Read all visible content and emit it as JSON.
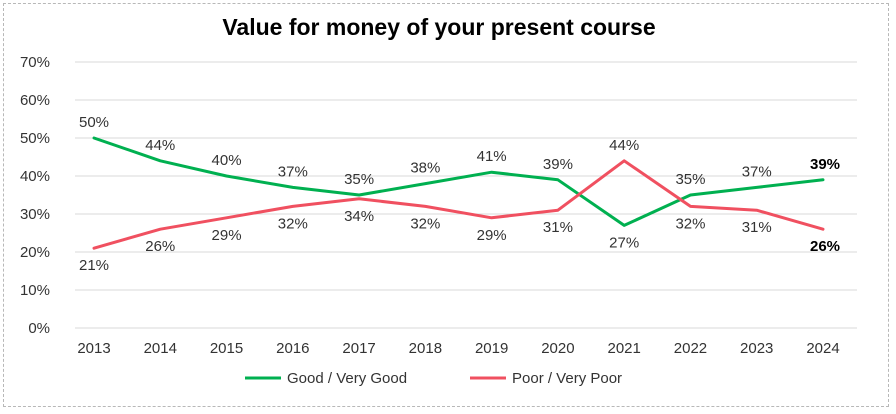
{
  "chart_data": {
    "type": "line",
    "title": "Value for money of your present course",
    "categories": [
      "2013",
      "2014",
      "2015",
      "2016",
      "2017",
      "2018",
      "2019",
      "2020",
      "2021",
      "2022",
      "2023",
      "2024"
    ],
    "ylim": [
      0,
      70
    ],
    "yticks": [
      "0%",
      "10%",
      "20%",
      "30%",
      "40%",
      "50%",
      "60%",
      "70%"
    ],
    "grid": true,
    "legend_position": "bottom",
    "series": [
      {
        "name": "Good / Very Good",
        "color": "#00b050",
        "values": [
          50,
          44,
          40,
          37,
          35,
          38,
          41,
          39,
          27,
          35,
          37,
          39
        ],
        "labels": [
          "50%",
          "44%",
          "40%",
          "37%",
          "35%",
          "38%",
          "41%",
          "39%",
          "27%",
          "35%",
          "37%",
          "39%"
        ],
        "label_positions": [
          "above",
          "above",
          "above",
          "above",
          "above",
          "above",
          "above",
          "above",
          "below",
          "above",
          "above",
          "above"
        ]
      },
      {
        "name": "Poor / Very Poor",
        "color": "#f05060",
        "values": [
          21,
          26,
          29,
          32,
          34,
          32,
          29,
          31,
          44,
          32,
          31,
          26
        ],
        "labels": [
          "21%",
          "26%",
          "29%",
          "32%",
          "34%",
          "32%",
          "29%",
          "31%",
          "44%",
          "32%",
          "31%",
          "26%"
        ],
        "label_positions": [
          "below",
          "below",
          "below",
          "below",
          "below",
          "below",
          "below",
          "below",
          "above",
          "below",
          "below",
          "below"
        ]
      }
    ]
  }
}
